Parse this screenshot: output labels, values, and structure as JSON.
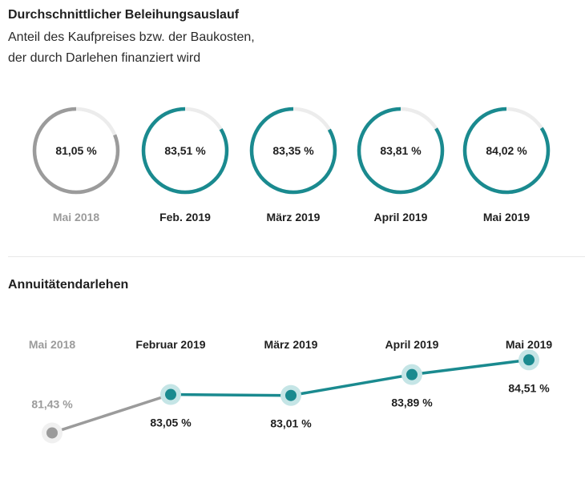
{
  "header": {
    "title": "Durchschnittlicher Beleihungsauslauf",
    "subtitle_line1": "Anteil des Kaufpreises bzw. der Baukosten,",
    "subtitle_line2": "der durch Darlehen finanziert wird"
  },
  "section": {
    "title": "Annuitätendarlehen"
  },
  "colors": {
    "accent": "#1a8a8f",
    "accent_light": "#c5e5e6",
    "muted": "#9b9b9b",
    "muted_light": "#f0f0f0",
    "track": "#ececec"
  },
  "chart_data": [
    {
      "type": "donut",
      "categories": [
        "Mai 2018",
        "Feb. 2019",
        "März 2019",
        "April 2019",
        "Mai 2019"
      ],
      "values": [
        81.05,
        83.51,
        83.35,
        83.81,
        84.02
      ],
      "value_labels": [
        "81,05 %",
        "83,51 %",
        "83,35 %",
        "83,81 %",
        "84,02 %"
      ],
      "max": 100
    },
    {
      "type": "line",
      "categories": [
        "Mai 2018",
        "Februar 2019",
        "März 2019",
        "April 2019",
        "Mai 2019"
      ],
      "values": [
        81.43,
        83.05,
        83.01,
        83.89,
        84.51
      ],
      "value_labels": [
        "81,43 %",
        "83,05 %",
        "83,01 %",
        "83,89 %",
        "84,51 %"
      ],
      "ylim": [
        80.5,
        85.5
      ],
      "grid": false
    }
  ]
}
